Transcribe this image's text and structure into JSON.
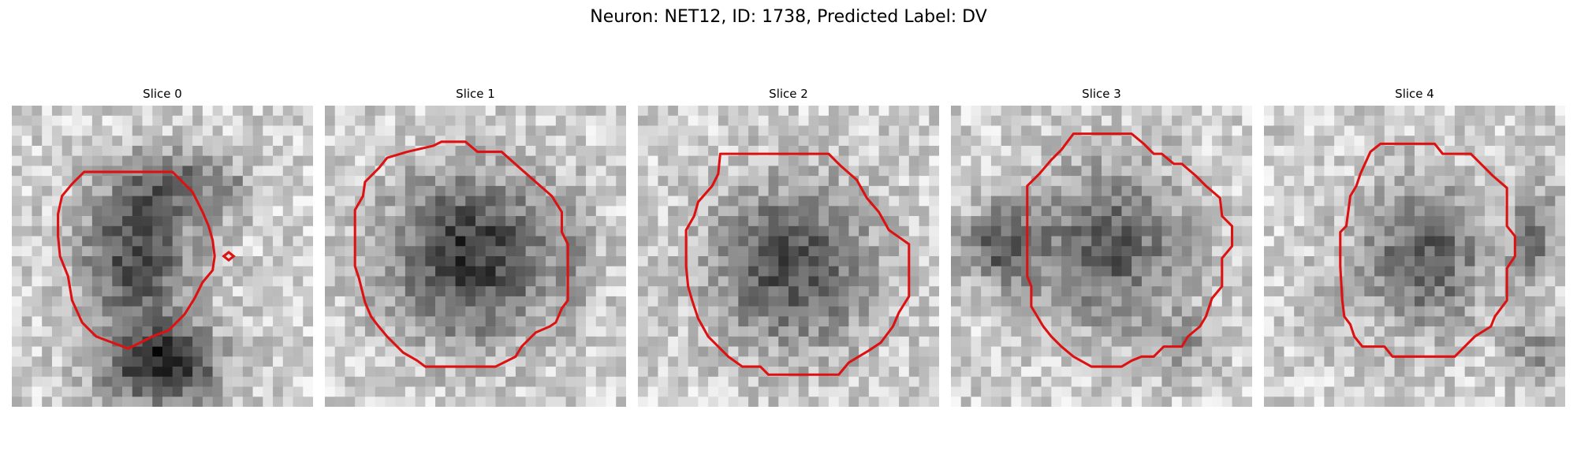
{
  "figure": {
    "title": "Neuron: NET12, ID: 1738, Predicted Label: DV"
  },
  "contour_color": "#dd1111",
  "panels": [
    {
      "title": "Slice 0"
    },
    {
      "title": "Slice 1"
    },
    {
      "title": "Slice 2"
    },
    {
      "title": "Slice 3"
    },
    {
      "title": "Slice 4"
    }
  ]
}
